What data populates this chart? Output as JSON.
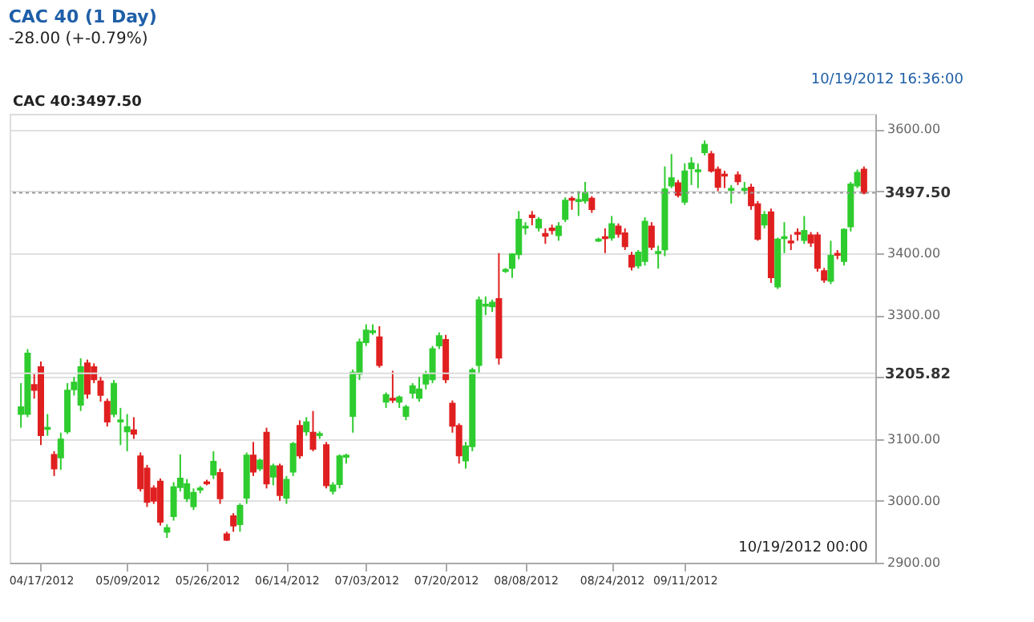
{
  "chart_data": {
    "type": "candlestick",
    "title": "CAC 40 (1 Day)",
    "subtitle": "-28.00 (+-0.79%)",
    "annotations": [
      "CAC 40:3497.50",
      "10/19/2012 16:36:00",
      "10/19/2012 00:00"
    ],
    "categories": [
      null,
      null,
      null,
      "04/17/2012",
      null,
      null,
      null,
      null,
      null,
      null,
      null,
      null,
      null,
      null,
      null,
      null,
      "05/09/2012",
      null,
      null,
      null,
      null,
      null,
      null,
      null,
      null,
      null,
      null,
      null,
      "05/26/2012",
      null,
      null,
      null,
      null,
      null,
      null,
      null,
      null,
      null,
      null,
      null,
      "06/14/2012",
      null,
      null,
      null,
      null,
      null,
      null,
      null,
      null,
      null,
      null,
      null,
      "07/03/2012",
      null,
      null,
      null,
      null,
      null,
      null,
      null,
      null,
      null,
      null,
      null,
      "07/20/2012",
      null,
      null,
      null,
      null,
      null,
      null,
      null,
      null,
      null,
      null,
      null,
      "08/08/2012",
      null,
      null,
      null,
      null,
      null,
      null,
      null,
      null,
      null,
      null,
      null,
      null,
      "08/24/2012",
      null,
      null,
      null,
      null,
      null,
      null,
      null,
      null,
      null,
      null,
      "09/11/2012",
      null,
      null,
      null,
      null,
      null,
      null,
      null,
      null,
      null,
      null,
      null,
      null,
      null,
      null,
      null,
      null,
      null,
      null,
      null,
      null,
      null,
      null,
      null,
      null,
      null,
      null,
      null
    ],
    "ohlc": [
      [
        3140,
        3190,
        3118,
        3151
      ],
      [
        3140,
        3245,
        3135,
        3238
      ],
      [
        3187,
        3205,
        3165,
        3179
      ],
      [
        3216,
        3225,
        3090,
        3106
      ],
      [
        3116,
        3140,
        3105,
        3118
      ],
      [
        3074,
        3080,
        3040,
        3052
      ],
      [
        3070,
        3110,
        3050,
        3099
      ],
      [
        3112,
        3190,
        3108,
        3178
      ],
      [
        3180,
        3200,
        3170,
        3191
      ],
      [
        3155,
        3230,
        3145,
        3216
      ],
      [
        3222,
        3228,
        3165,
        3173
      ],
      [
        3216,
        3222,
        3190,
        3196
      ],
      [
        3193,
        3200,
        3160,
        3171
      ],
      [
        3160,
        3165,
        3120,
        3128
      ],
      [
        3140,
        3195,
        3135,
        3189
      ],
      [
        3128,
        3150,
        3090,
        3130
      ],
      [
        3112,
        3140,
        3080,
        3119
      ],
      [
        3114,
        3135,
        3100,
        3108
      ],
      [
        3072,
        3078,
        3015,
        3020
      ],
      [
        3052,
        3058,
        2990,
        2998
      ],
      [
        3020,
        3025,
        2995,
        3000
      ],
      [
        3031,
        3036,
        2960,
        2966
      ],
      [
        2950,
        2962,
        2940,
        2956
      ],
      [
        2975,
        3030,
        2968,
        3022
      ],
      [
        3022,
        3075,
        3015,
        3036
      ],
      [
        3004,
        3035,
        2998,
        3027
      ],
      [
        2991,
        3020,
        2985,
        3013
      ],
      [
        3018,
        3024,
        3012,
        3020
      ],
      [
        3030,
        3034,
        3025,
        3028
      ],
      [
        3042,
        3080,
        3035,
        3063
      ],
      [
        3045,
        3052,
        2995,
        3004
      ],
      [
        2946,
        2950,
        2935,
        2937
      ],
      [
        2975,
        2980,
        2950,
        2960
      ],
      [
        2962,
        2996,
        2950,
        2992
      ],
      [
        3005,
        3078,
        2995,
        3073
      ],
      [
        3073,
        3095,
        3040,
        3047
      ],
      [
        3052,
        3068,
        3048,
        3065
      ],
      [
        3110,
        3118,
        3020,
        3028
      ],
      [
        3039,
        3060,
        3025,
        3056
      ],
      [
        3056,
        3060,
        3000,
        3009
      ],
      [
        3005,
        3040,
        2995,
        3034
      ],
      [
        3047,
        3095,
        3040,
        3092
      ],
      [
        3121,
        3130,
        3068,
        3073
      ],
      [
        3112,
        3135,
        3105,
        3127
      ],
      [
        3110,
        3145,
        3080,
        3084
      ],
      [
        3106,
        3112,
        3100,
        3108
      ],
      [
        3090,
        3095,
        3020,
        3025
      ],
      [
        3016,
        3030,
        3010,
        3025
      ],
      [
        3027,
        3075,
        3020,
        3072
      ],
      [
        3071,
        3076,
        3060,
        3073
      ],
      [
        3137,
        3212,
        3110,
        3207
      ],
      [
        3205,
        3262,
        3195,
        3256
      ],
      [
        3256,
        3285,
        3250,
        3275
      ],
      [
        3272,
        3285,
        3268,
        3274
      ],
      [
        3264,
        3282,
        3215,
        3219
      ],
      [
        3160,
        3175,
        3150,
        3171
      ],
      [
        3165,
        3210,
        3158,
        3163
      ],
      [
        3160,
        3170,
        3150,
        3167
      ],
      [
        3137,
        3155,
        3130,
        3151
      ],
      [
        3174,
        3190,
        3165,
        3185
      ],
      [
        3166,
        3200,
        3160,
        3180
      ],
      [
        3189,
        3210,
        3180,
        3204
      ],
      [
        3196,
        3250,
        3190,
        3245
      ],
      [
        3251,
        3272,
        3245,
        3266
      ],
      [
        3260,
        3268,
        3190,
        3196
      ],
      [
        3157,
        3162,
        3110,
        3121
      ],
      [
        3121,
        3125,
        3060,
        3073
      ],
      [
        3065,
        3095,
        3052,
        3088
      ],
      [
        3088,
        3215,
        3080,
        3211
      ],
      [
        3219,
        3330,
        3205,
        3324
      ],
      [
        3315,
        3330,
        3300,
        3317
      ],
      [
        3314,
        3325,
        3305,
        3320
      ],
      [
        3326,
        3400,
        3220,
        3231
      ],
      [
        3371,
        3376,
        3368,
        3373
      ],
      [
        3376,
        3400,
        3360,
        3398
      ],
      [
        3398,
        3468,
        3390,
        3454
      ],
      [
        3441,
        3450,
        3430,
        3443
      ],
      [
        3461,
        3468,
        3445,
        3458
      ],
      [
        3441,
        3458,
        3435,
        3454
      ],
      [
        3431,
        3440,
        3415,
        3428
      ],
      [
        3440,
        3446,
        3430,
        3437
      ],
      [
        3429,
        3450,
        3420,
        3443
      ],
      [
        3455,
        3490,
        3450,
        3485
      ],
      [
        3488,
        3492,
        3470,
        3486
      ],
      [
        3484,
        3500,
        3460,
        3486
      ],
      [
        3485,
        3515,
        3480,
        3497
      ],
      [
        3488,
        3492,
        3465,
        3471
      ],
      [
        3420,
        3425,
        3418,
        3422
      ],
      [
        3426,
        3440,
        3400,
        3424
      ],
      [
        3425,
        3460,
        3420,
        3447
      ],
      [
        3443,
        3448,
        3425,
        3431
      ],
      [
        3432,
        3440,
        3405,
        3411
      ],
      [
        3396,
        3402,
        3372,
        3378
      ],
      [
        3380,
        3405,
        3375,
        3401
      ],
      [
        3387,
        3458,
        3380,
        3451
      ],
      [
        3443,
        3450,
        3405,
        3410
      ],
      [
        3400,
        3412,
        3375,
        3402
      ],
      [
        3406,
        3540,
        3395,
        3503
      ],
      [
        3509,
        3560,
        3505,
        3521
      ],
      [
        3513,
        3518,
        3490,
        3494
      ],
      [
        3483,
        3545,
        3478,
        3532
      ],
      [
        3537,
        3555,
        3510,
        3545
      ],
      [
        3532,
        3545,
        3505,
        3534
      ],
      [
        3563,
        3582,
        3558,
        3575
      ],
      [
        3560,
        3565,
        3530,
        3533
      ],
      [
        3535,
        3540,
        3500,
        3507
      ],
      [
        3527,
        3533,
        3505,
        3525
      ],
      [
        3502,
        3510,
        3480,
        3504
      ],
      [
        3526,
        3532,
        3510,
        3516
      ],
      [
        3502,
        3515,
        3495,
        3504
      ],
      [
        3506,
        3512,
        3470,
        3477
      ],
      [
        3479,
        3484,
        3420,
        3423
      ],
      [
        3446,
        3468,
        3440,
        3462
      ],
      [
        3466,
        3472,
        3352,
        3361
      ],
      [
        3346,
        3425,
        3342,
        3422
      ],
      [
        3424,
        3450,
        3400,
        3426
      ],
      [
        3419,
        3430,
        3405,
        3417
      ],
      [
        3433,
        3440,
        3420,
        3431
      ],
      [
        3421,
        3460,
        3415,
        3436
      ],
      [
        3429,
        3434,
        3410,
        3417
      ],
      [
        3429,
        3434,
        3370,
        3376
      ],
      [
        3371,
        3376,
        3352,
        3357
      ],
      [
        3355,
        3420,
        3350,
        3396
      ],
      [
        3399,
        3405,
        3390,
        3397
      ],
      [
        3387,
        3440,
        3380,
        3438
      ],
      [
        3443,
        3515,
        3435,
        3511
      ],
      [
        3509,
        3535,
        3505,
        3530
      ],
      [
        3535,
        3540,
        3495,
        3497.5
      ]
    ],
    "colors": [
      "#2ecc2e",
      "#2ecc2e",
      "#e02020",
      "#e02020",
      "#2ecc2e",
      "#e02020",
      "#2ecc2e",
      "#2ecc2e",
      "#2ecc2e",
      "#2ecc2e",
      "#e02020",
      "#e02020",
      "#e02020",
      "#e02020",
      "#2ecc2e",
      "#2ecc2e",
      "#2ecc2e",
      "#e02020",
      "#e02020",
      "#e02020",
      "#e02020",
      "#e02020",
      "#2ecc2e",
      "#2ecc2e",
      "#2ecc2e",
      "#2ecc2e",
      "#2ecc2e",
      "#2ecc2e",
      "#e02020",
      "#2ecc2e",
      "#e02020",
      "#e02020",
      "#e02020",
      "#2ecc2e",
      "#2ecc2e",
      "#e02020",
      "#2ecc2e",
      "#e02020",
      "#2ecc2e",
      "#e02020",
      "#2ecc2e",
      "#2ecc2e",
      "#e02020",
      "#2ecc2e",
      "#e02020",
      "#2ecc2e",
      "#e02020",
      "#2ecc2e",
      "#2ecc2e",
      "#2ecc2e",
      "#2ecc2e",
      "#2ecc2e",
      "#2ecc2e",
      "#2ecc2e",
      "#e02020",
      "#2ecc2e",
      "#e02020",
      "#2ecc2e",
      "#2ecc2e",
      "#2ecc2e",
      "#2ecc2e",
      "#2ecc2e",
      "#2ecc2e",
      "#2ecc2e",
      "#e02020",
      "#e02020",
      "#e02020",
      "#2ecc2e",
      "#2ecc2e",
      "#2ecc2e",
      "#2ecc2e",
      "#2ecc2e",
      "#e02020",
      "#2ecc2e",
      "#2ecc2e",
      "#2ecc2e",
      "#2ecc2e",
      "#e02020",
      "#2ecc2e",
      "#e02020",
      "#e02020",
      "#2ecc2e",
      "#2ecc2e",
      "#e02020",
      "#2ecc2e",
      "#2ecc2e",
      "#e02020",
      "#2ecc2e",
      "#e02020",
      "#2ecc2e",
      "#e02020",
      "#e02020",
      "#e02020",
      "#2ecc2e",
      "#2ecc2e",
      "#e02020",
      "#2ecc2e",
      "#2ecc2e",
      "#2ecc2e",
      "#e02020",
      "#2ecc2e",
      "#2ecc2e",
      "#2ecc2e",
      "#2ecc2e",
      "#e02020",
      "#e02020",
      "#e02020",
      "#2ecc2e",
      "#e02020",
      "#2ecc2e",
      "#e02020",
      "#e02020",
      "#2ecc2e",
      "#e02020",
      "#2ecc2e",
      "#2ecc2e",
      "#e02020",
      "#e02020",
      "#2ecc2e",
      "#e02020",
      "#e02020",
      "#e02020",
      "#2ecc2e",
      "#e02020",
      "#2ecc2e",
      "#2ecc2e",
      "#2ecc2e",
      "#e02020"
    ],
    "ylim": [
      2900,
      3625
    ],
    "yticks": [
      {
        "value": 2900,
        "label": "2900.00"
      },
      {
        "value": 3000,
        "label": "3000.00"
      },
      {
        "value": 3100,
        "label": "3100.00"
      },
      {
        "value": 3200,
        "label": null
      },
      {
        "value": 3300,
        "label": "3300.00"
      },
      {
        "value": 3400,
        "label": "3400.00"
      },
      {
        "value": 3500,
        "label": null
      },
      {
        "value": 3600,
        "label": "3600.00"
      }
    ],
    "grid": "y",
    "ref_lines": [
      {
        "axis": "y",
        "value": 3497.5,
        "label": "3497.50",
        "color": "#999999",
        "line_style": "dotted"
      },
      {
        "axis": "y",
        "value": 3205.82,
        "label": "3205.82",
        "color": "#dddddd",
        "line_style": "solid"
      }
    ]
  }
}
